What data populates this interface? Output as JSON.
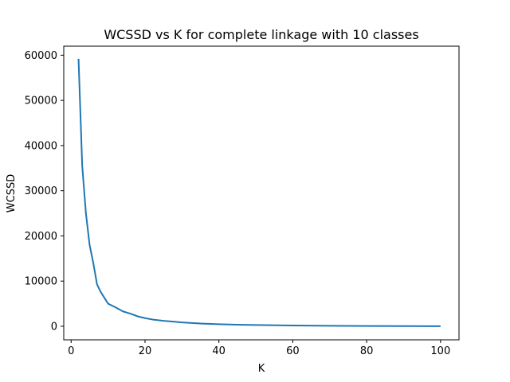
{
  "chart_data": {
    "type": "line",
    "title": "WCSSD vs K for complete linkage with 10 classes",
    "xlabel": "K",
    "ylabel": "WCSSD",
    "xlim": [
      -2,
      105
    ],
    "ylim": [
      -3000,
      62000
    ],
    "xticks": [
      0,
      20,
      40,
      60,
      80,
      100
    ],
    "yticks": [
      0,
      10000,
      20000,
      30000,
      40000,
      50000,
      60000
    ],
    "grid": false,
    "series": [
      {
        "color": "#1f77b4",
        "x": [
          2,
          3,
          4,
          5,
          6,
          7,
          8,
          10,
          12,
          14,
          16,
          18,
          20,
          22,
          25,
          28,
          30,
          35,
          40,
          45,
          50,
          60,
          70,
          80,
          90,
          100
        ],
        "y": [
          59200,
          35500,
          25000,
          18000,
          14000,
          9300,
          7600,
          5000,
          4200,
          3300,
          2800,
          2200,
          1800,
          1500,
          1200,
          1000,
          850,
          600,
          450,
          350,
          280,
          180,
          110,
          60,
          40,
          20
        ]
      }
    ]
  }
}
